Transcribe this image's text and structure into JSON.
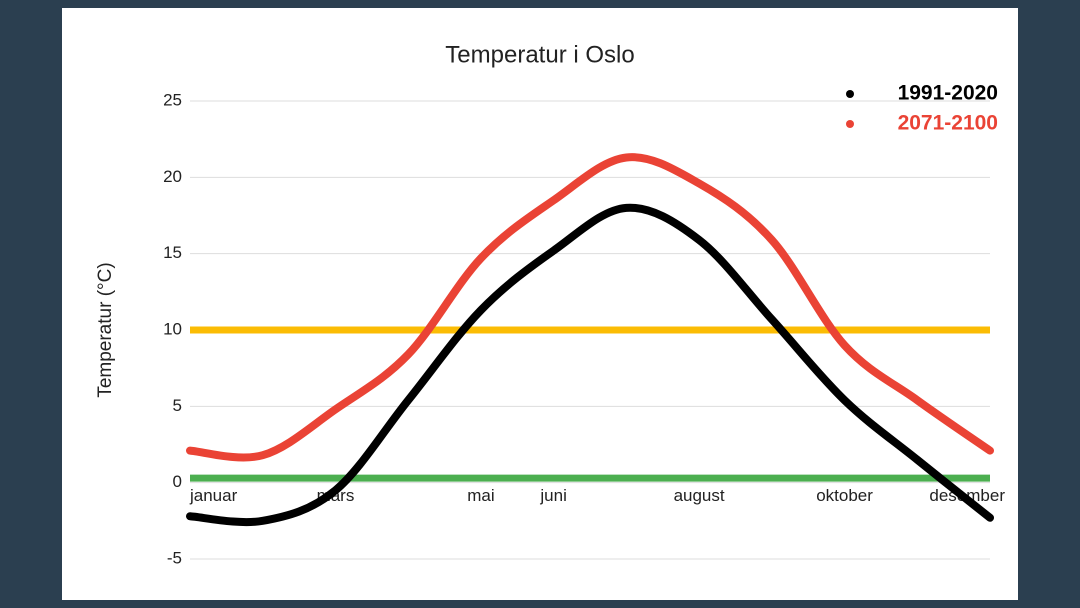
{
  "chart_data": {
    "type": "line",
    "title": "Temperatur i Oslo",
    "y_label": "Temperatur (°C)",
    "categories": [
      "januar",
      null,
      "mars",
      null,
      "mai",
      "juni",
      null,
      "august",
      null,
      "oktober",
      null,
      "desember"
    ],
    "series": [
      {
        "name": "1991-2020",
        "color": "#000000",
        "values": [
          -2.2,
          -2.5,
          -0.5,
          5.4,
          11.3,
          15.2,
          18,
          15.9,
          10.7,
          5.4,
          1.5,
          -2.3
        ]
      },
      {
        "name": "2071-2100",
        "color": "#ea4335",
        "values": [
          2.1,
          1.8,
          4.8,
          8.4,
          14.7,
          18.5,
          21.3,
          19.6,
          15.9,
          9,
          5.4,
          2.1
        ]
      }
    ],
    "reference_lines": [
      {
        "value": 10,
        "color": "#fbbc04"
      },
      {
        "value": 0.3,
        "color": "#4caf50"
      }
    ],
    "ylim": [
      -5,
      25
    ],
    "yticks": [
      -5,
      0,
      5,
      10,
      15,
      20,
      25
    ],
    "grid": true,
    "legend": "top-right"
  }
}
